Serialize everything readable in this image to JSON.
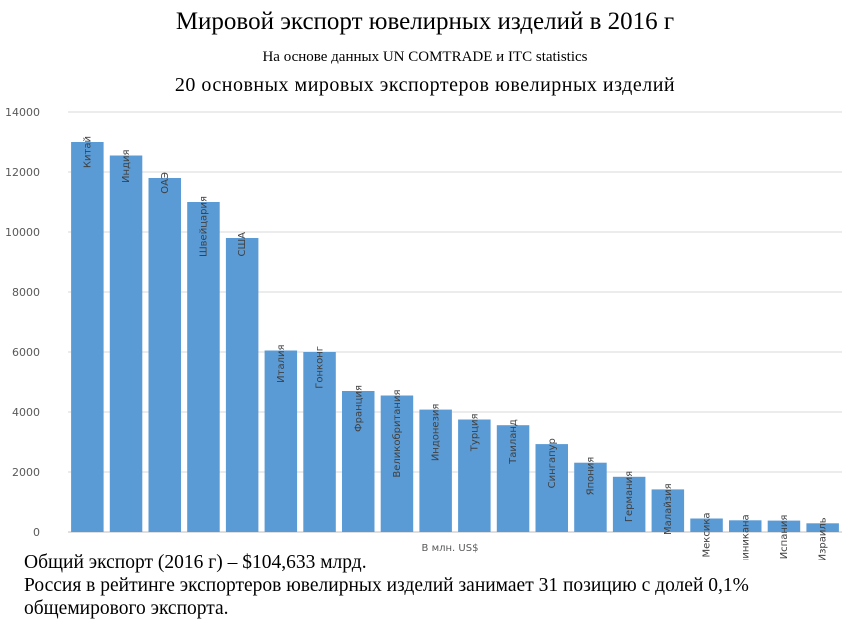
{
  "title": "Мировой экспорт ювелирных изделий в 2016 г",
  "source": "На основе данных UN COMTRADE и ITC statistics",
  "chart_data": {
    "type": "bar",
    "title": "20 основных мировых экспортеров ювелирных изделий",
    "xlabel": "В млн. US$",
    "ylabel": "",
    "ylim": [
      0,
      14000
    ],
    "yticks": [
      0,
      2000,
      4000,
      6000,
      8000,
      10000,
      12000,
      14000
    ],
    "grid": true,
    "bar_color": "#5b9bd5",
    "categories": [
      "Китай",
      "Индия",
      "ОАЭ",
      "Швейцария",
      "США",
      "Италия",
      "Гонконг",
      "Франция",
      "Великобритания",
      "Индонезия",
      "Турция",
      "Таиланд",
      "Сингапур",
      "Япония",
      "Германия",
      "Малайзия",
      "Мексика",
      "Доминикана",
      "Испания",
      "Израиль"
    ],
    "values": [
      13000,
      12550,
      11800,
      11000,
      9800,
      6050,
      6000,
      4700,
      4550,
      4080,
      3750,
      3560,
      2930,
      2310,
      1840,
      1420,
      450,
      390,
      380,
      290
    ]
  },
  "notes": {
    "line1": "Общий экспорт (2016 г) – $104,633 млрд.",
    "line2": "Россия в рейтинге экспортеров ювелирных изделий занимает 31 позицию с долей 0,1%",
    "line3": "общемирового экспорта."
  }
}
